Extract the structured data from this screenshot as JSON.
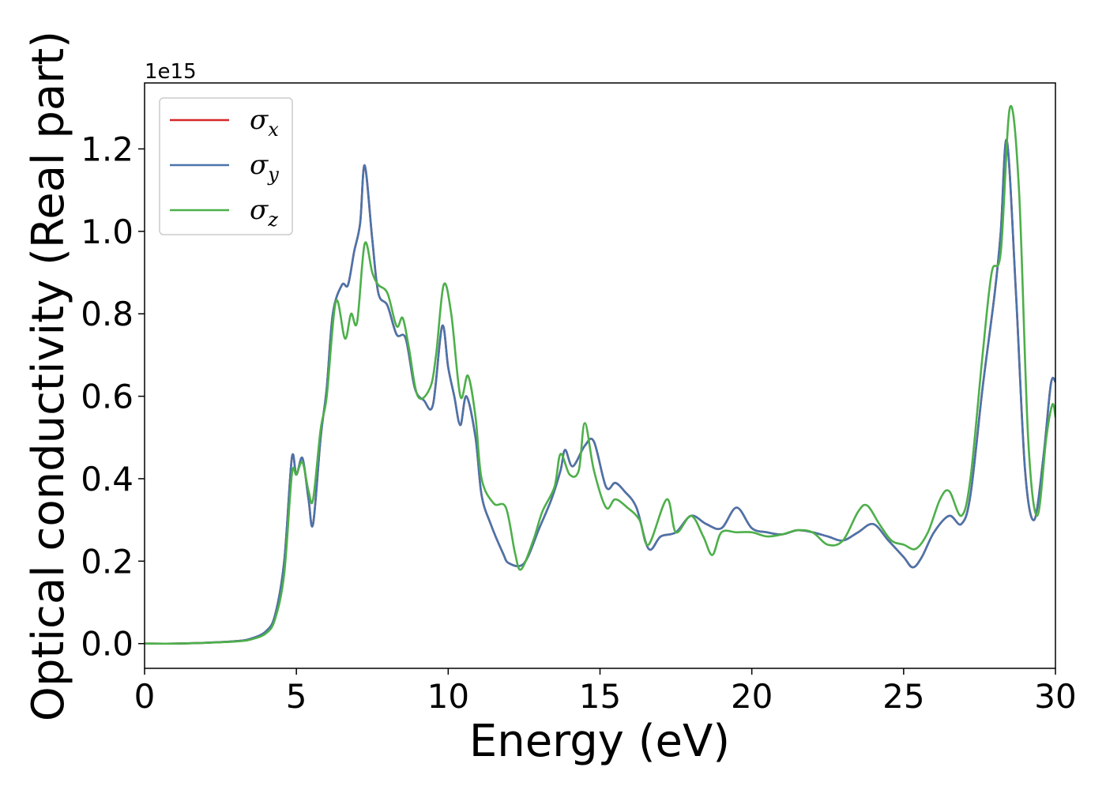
{
  "chart_data": {
    "type": "line",
    "xlabel": "Energy (eV)",
    "ylabel": "Optical conductivity (Real part)",
    "y_offset_text": "1e15",
    "xlim": [
      0,
      30
    ],
    "ylim": [
      -0.06,
      1.36
    ],
    "x_ticks": [
      0,
      5,
      10,
      15,
      20,
      25,
      30
    ],
    "x_tick_labels": [
      "0",
      "5",
      "10",
      "15",
      "20",
      "25",
      "30"
    ],
    "y_ticks": [
      0.0,
      0.2,
      0.4,
      0.6,
      0.8,
      1.0,
      1.2
    ],
    "y_tick_labels": [
      "0.0",
      "0.2",
      "0.4",
      "0.6",
      "0.8",
      "1.0",
      "1.2"
    ],
    "grid": false,
    "legend_position": "top-left",
    "series": [
      {
        "name": "σ",
        "subscript": "x",
        "color": "#d62728",
        "points": [
          [
            0,
            0
          ],
          [
            1,
            0
          ],
          [
            2,
            0.002
          ],
          [
            3,
            0.006
          ],
          [
            3.5,
            0.012
          ],
          [
            4,
            0.03
          ],
          [
            4.3,
            0.07
          ],
          [
            4.6,
            0.2
          ],
          [
            4.85,
            0.45
          ],
          [
            5.0,
            0.41
          ],
          [
            5.2,
            0.45
          ],
          [
            5.4,
            0.35
          ],
          [
            5.55,
            0.29
          ],
          [
            5.8,
            0.5
          ],
          [
            6.0,
            0.62
          ],
          [
            6.2,
            0.8
          ],
          [
            6.5,
            0.87
          ],
          [
            6.7,
            0.87
          ],
          [
            6.9,
            0.95
          ],
          [
            7.1,
            1.02
          ],
          [
            7.25,
            1.16
          ],
          [
            7.5,
            0.98
          ],
          [
            7.7,
            0.85
          ],
          [
            8.0,
            0.82
          ],
          [
            8.3,
            0.75
          ],
          [
            8.6,
            0.74
          ],
          [
            8.9,
            0.62
          ],
          [
            9.2,
            0.59
          ],
          [
            9.5,
            0.58
          ],
          [
            9.8,
            0.77
          ],
          [
            10.0,
            0.67
          ],
          [
            10.2,
            0.6
          ],
          [
            10.4,
            0.53
          ],
          [
            10.6,
            0.6
          ],
          [
            10.9,
            0.5
          ],
          [
            11.1,
            0.36
          ],
          [
            11.4,
            0.29
          ],
          [
            11.8,
            0.22
          ],
          [
            12.0,
            0.195
          ],
          [
            12.5,
            0.195
          ],
          [
            13.0,
            0.28
          ],
          [
            13.4,
            0.35
          ],
          [
            13.7,
            0.42
          ],
          [
            13.85,
            0.47
          ],
          [
            14.1,
            0.43
          ],
          [
            14.5,
            0.48
          ],
          [
            14.8,
            0.49
          ],
          [
            15.2,
            0.38
          ],
          [
            15.5,
            0.39
          ],
          [
            15.8,
            0.37
          ],
          [
            16.2,
            0.33
          ],
          [
            16.6,
            0.23
          ],
          [
            17.0,
            0.26
          ],
          [
            17.5,
            0.27
          ],
          [
            18.0,
            0.31
          ],
          [
            18.5,
            0.29
          ],
          [
            19.0,
            0.28
          ],
          [
            19.5,
            0.33
          ],
          [
            20.0,
            0.28
          ],
          [
            20.5,
            0.27
          ],
          [
            21.0,
            0.265
          ],
          [
            21.5,
            0.275
          ],
          [
            22.0,
            0.27
          ],
          [
            22.5,
            0.26
          ],
          [
            23.0,
            0.25
          ],
          [
            23.5,
            0.27
          ],
          [
            24.0,
            0.29
          ],
          [
            24.5,
            0.25
          ],
          [
            25.0,
            0.21
          ],
          [
            25.3,
            0.185
          ],
          [
            25.6,
            0.21
          ],
          [
            26.0,
            0.27
          ],
          [
            26.5,
            0.31
          ],
          [
            26.9,
            0.29
          ],
          [
            27.2,
            0.36
          ],
          [
            27.6,
            0.62
          ],
          [
            28.0,
            0.85
          ],
          [
            28.2,
            1.0
          ],
          [
            28.4,
            1.22
          ],
          [
            28.7,
            0.85
          ],
          [
            29.0,
            0.42
          ],
          [
            29.3,
            0.3
          ],
          [
            29.6,
            0.45
          ],
          [
            29.85,
            0.63
          ],
          [
            30.0,
            0.635
          ]
        ]
      },
      {
        "name": "σ",
        "subscript": "y",
        "color": "#4a74aa",
        "points": [
          [
            0,
            0
          ],
          [
            1,
            0
          ],
          [
            2,
            0.002
          ],
          [
            3,
            0.006
          ],
          [
            3.5,
            0.012
          ],
          [
            4,
            0.03
          ],
          [
            4.3,
            0.07
          ],
          [
            4.6,
            0.2
          ],
          [
            4.85,
            0.45
          ],
          [
            5.0,
            0.41
          ],
          [
            5.2,
            0.45
          ],
          [
            5.4,
            0.35
          ],
          [
            5.55,
            0.29
          ],
          [
            5.8,
            0.5
          ],
          [
            6.0,
            0.62
          ],
          [
            6.2,
            0.8
          ],
          [
            6.5,
            0.87
          ],
          [
            6.7,
            0.87
          ],
          [
            6.9,
            0.95
          ],
          [
            7.1,
            1.02
          ],
          [
            7.25,
            1.16
          ],
          [
            7.5,
            0.98
          ],
          [
            7.7,
            0.85
          ],
          [
            8.0,
            0.82
          ],
          [
            8.3,
            0.75
          ],
          [
            8.6,
            0.74
          ],
          [
            8.9,
            0.62
          ],
          [
            9.2,
            0.59
          ],
          [
            9.5,
            0.58
          ],
          [
            9.8,
            0.77
          ],
          [
            10.0,
            0.67
          ],
          [
            10.2,
            0.6
          ],
          [
            10.4,
            0.53
          ],
          [
            10.6,
            0.6
          ],
          [
            10.9,
            0.5
          ],
          [
            11.1,
            0.36
          ],
          [
            11.4,
            0.29
          ],
          [
            11.8,
            0.22
          ],
          [
            12.0,
            0.195
          ],
          [
            12.5,
            0.195
          ],
          [
            13.0,
            0.28
          ],
          [
            13.4,
            0.35
          ],
          [
            13.7,
            0.42
          ],
          [
            13.85,
            0.47
          ],
          [
            14.1,
            0.43
          ],
          [
            14.5,
            0.48
          ],
          [
            14.8,
            0.49
          ],
          [
            15.2,
            0.38
          ],
          [
            15.5,
            0.39
          ],
          [
            15.8,
            0.37
          ],
          [
            16.2,
            0.33
          ],
          [
            16.6,
            0.23
          ],
          [
            17.0,
            0.26
          ],
          [
            17.5,
            0.27
          ],
          [
            18.0,
            0.31
          ],
          [
            18.5,
            0.29
          ],
          [
            19.0,
            0.28
          ],
          [
            19.5,
            0.33
          ],
          [
            20.0,
            0.28
          ],
          [
            20.5,
            0.27
          ],
          [
            21.0,
            0.265
          ],
          [
            21.5,
            0.275
          ],
          [
            22.0,
            0.27
          ],
          [
            22.5,
            0.26
          ],
          [
            23.0,
            0.25
          ],
          [
            23.5,
            0.27
          ],
          [
            24.0,
            0.29
          ],
          [
            24.5,
            0.25
          ],
          [
            25.0,
            0.21
          ],
          [
            25.3,
            0.185
          ],
          [
            25.6,
            0.21
          ],
          [
            26.0,
            0.27
          ],
          [
            26.5,
            0.31
          ],
          [
            26.9,
            0.29
          ],
          [
            27.2,
            0.36
          ],
          [
            27.6,
            0.62
          ],
          [
            28.0,
            0.85
          ],
          [
            28.2,
            1.0
          ],
          [
            28.4,
            1.22
          ],
          [
            28.7,
            0.85
          ],
          [
            29.0,
            0.42
          ],
          [
            29.3,
            0.3
          ],
          [
            29.6,
            0.45
          ],
          [
            29.85,
            0.63
          ],
          [
            30.0,
            0.635
          ]
        ]
      },
      {
        "name": "σ",
        "subscript": "z",
        "color": "#4daf4a",
        "points": [
          [
            0,
            0
          ],
          [
            1,
            0
          ],
          [
            2,
            0.002
          ],
          [
            3,
            0.005
          ],
          [
            3.5,
            0.01
          ],
          [
            4,
            0.025
          ],
          [
            4.3,
            0.06
          ],
          [
            4.6,
            0.17
          ],
          [
            4.85,
            0.41
          ],
          [
            5.0,
            0.41
          ],
          [
            5.2,
            0.44
          ],
          [
            5.4,
            0.37
          ],
          [
            5.55,
            0.35
          ],
          [
            5.8,
            0.52
          ],
          [
            6.0,
            0.6
          ],
          [
            6.3,
            0.83
          ],
          [
            6.6,
            0.74
          ],
          [
            6.8,
            0.8
          ],
          [
            7.0,
            0.78
          ],
          [
            7.25,
            0.97
          ],
          [
            7.5,
            0.9
          ],
          [
            7.7,
            0.87
          ],
          [
            8.0,
            0.85
          ],
          [
            8.3,
            0.77
          ],
          [
            8.5,
            0.79
          ],
          [
            8.7,
            0.72
          ],
          [
            9.0,
            0.6
          ],
          [
            9.4,
            0.62
          ],
          [
            9.6,
            0.7
          ],
          [
            9.85,
            0.87
          ],
          [
            10.1,
            0.8
          ],
          [
            10.4,
            0.6
          ],
          [
            10.65,
            0.65
          ],
          [
            10.9,
            0.55
          ],
          [
            11.1,
            0.4
          ],
          [
            11.5,
            0.34
          ],
          [
            11.9,
            0.33
          ],
          [
            12.2,
            0.22
          ],
          [
            12.4,
            0.18
          ],
          [
            12.8,
            0.25
          ],
          [
            13.1,
            0.32
          ],
          [
            13.5,
            0.38
          ],
          [
            13.7,
            0.46
          ],
          [
            14.0,
            0.41
          ],
          [
            14.3,
            0.42
          ],
          [
            14.5,
            0.535
          ],
          [
            14.8,
            0.42
          ],
          [
            15.2,
            0.33
          ],
          [
            15.5,
            0.35
          ],
          [
            15.9,
            0.33
          ],
          [
            16.3,
            0.3
          ],
          [
            16.6,
            0.24
          ],
          [
            17.2,
            0.35
          ],
          [
            17.5,
            0.27
          ],
          [
            18.0,
            0.31
          ],
          [
            18.4,
            0.26
          ],
          [
            18.7,
            0.215
          ],
          [
            19.0,
            0.27
          ],
          [
            19.5,
            0.27
          ],
          [
            20.0,
            0.27
          ],
          [
            20.5,
            0.26
          ],
          [
            21.0,
            0.265
          ],
          [
            21.5,
            0.275
          ],
          [
            22.0,
            0.27
          ],
          [
            22.5,
            0.24
          ],
          [
            23.0,
            0.25
          ],
          [
            23.5,
            0.32
          ],
          [
            23.8,
            0.335
          ],
          [
            24.2,
            0.29
          ],
          [
            24.6,
            0.25
          ],
          [
            25.0,
            0.24
          ],
          [
            25.4,
            0.23
          ],
          [
            25.8,
            0.27
          ],
          [
            26.2,
            0.35
          ],
          [
            26.5,
            0.37
          ],
          [
            26.9,
            0.31
          ],
          [
            27.2,
            0.4
          ],
          [
            27.6,
            0.7
          ],
          [
            27.9,
            0.9
          ],
          [
            28.2,
            0.95
          ],
          [
            28.5,
            1.3
          ],
          [
            28.8,
            1.1
          ],
          [
            29.1,
            0.5
          ],
          [
            29.4,
            0.31
          ],
          [
            29.7,
            0.5
          ],
          [
            29.9,
            0.58
          ],
          [
            30.0,
            0.55
          ]
        ]
      }
    ]
  }
}
